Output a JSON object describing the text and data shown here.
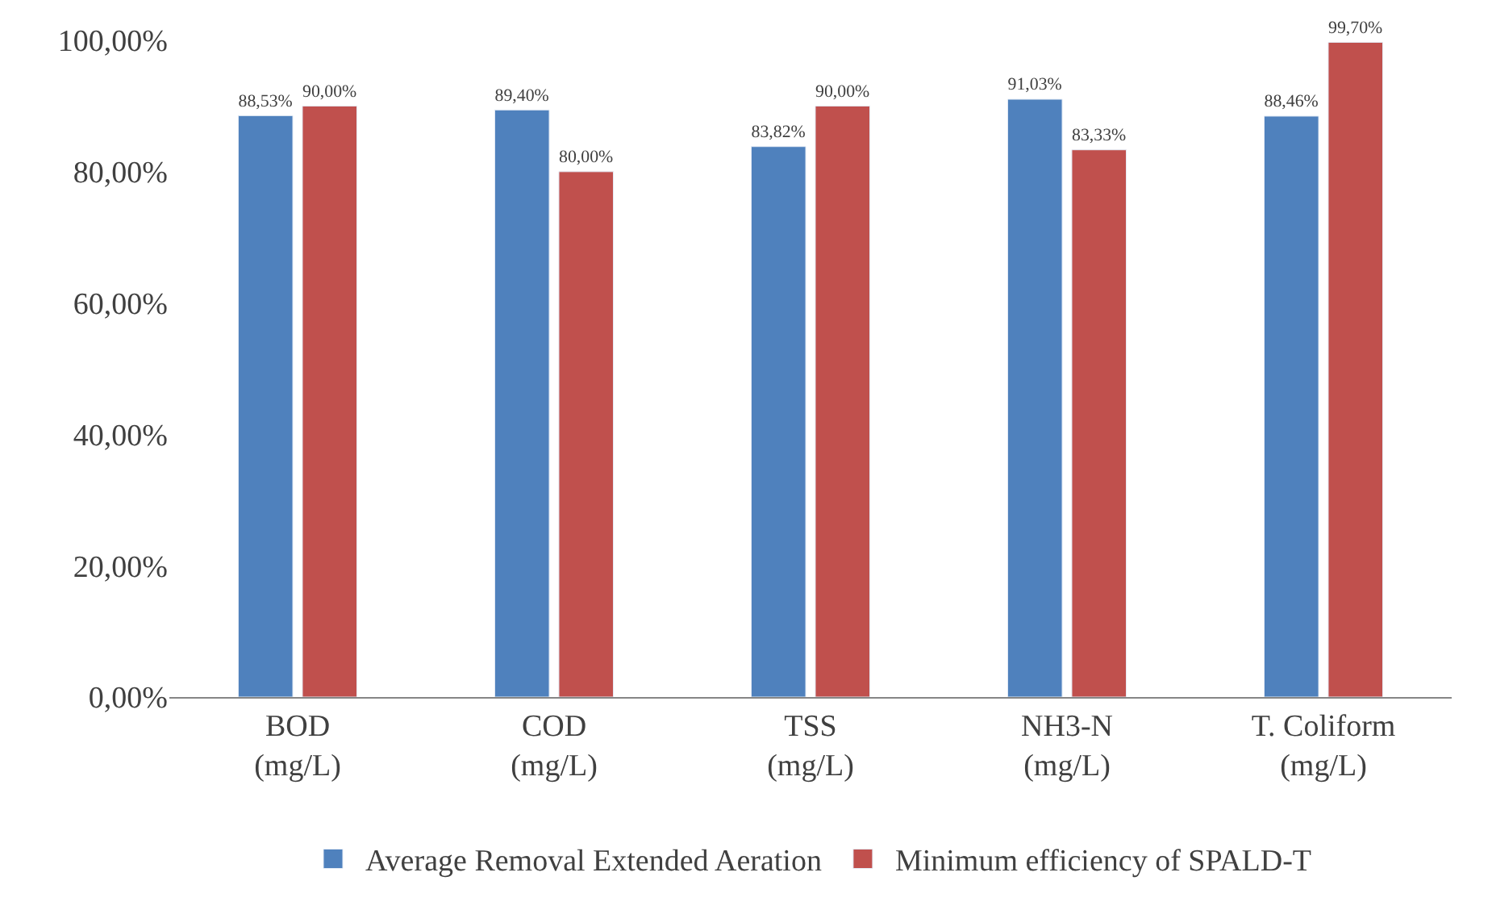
{
  "chart_data": {
    "type": "bar",
    "categories": [
      "BOD\n(mg/L)",
      "COD\n(mg/L)",
      "TSS\n(mg/L)",
      "NH3-N\n(mg/L)",
      "T. Coliform\n(mg/L)"
    ],
    "series": [
      {
        "name": "Average Removal Extended Aeration",
        "color": "#4f81bd",
        "values": [
          88.53,
          89.4,
          83.82,
          91.03,
          88.46
        ],
        "value_labels": [
          "88,53%",
          "89,40%",
          "83,82%",
          "91,03%",
          "88,46%"
        ]
      },
      {
        "name": "Minimum efficiency of SPALD-T",
        "color": "#c0504d",
        "values": [
          90.0,
          80.0,
          90.0,
          83.33,
          99.7
        ],
        "value_labels": [
          "90,00%",
          "80,00%",
          "90,00%",
          "83,33%",
          "99,70%"
        ]
      }
    ],
    "ylim": [
      0,
      100
    ],
    "yticks": [
      {
        "value": 0,
        "label": "0,00%"
      },
      {
        "value": 20,
        "label": "20,00%"
      },
      {
        "value": 40,
        "label": "40,00%"
      },
      {
        "value": 60,
        "label": "60,00%"
      },
      {
        "value": 80,
        "label": "80,00%"
      },
      {
        "value": 100,
        "label": "100,00%"
      }
    ],
    "grid": false,
    "legend": "bottom"
  }
}
